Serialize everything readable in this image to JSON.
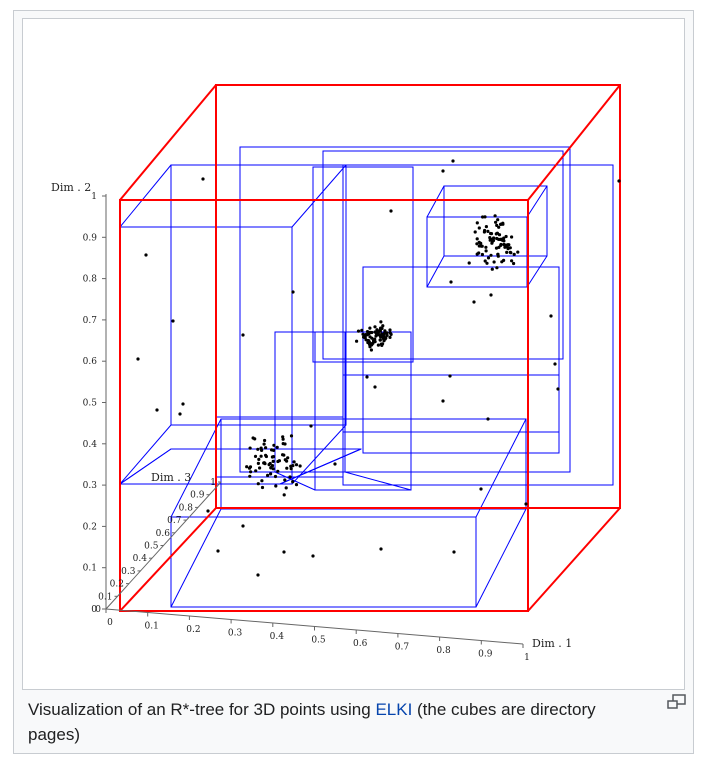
{
  "figure": {
    "axes": {
      "dim1_label": "Dim . 1",
      "dim2_label": "Dim . 2",
      "dim3_label": "Dim . 3",
      "dim1_ticks": [
        "0",
        "0.1",
        "0.2",
        "0.3",
        "0.4",
        "0.5",
        "0.6",
        "0.7",
        "0.8",
        "0.9",
        "1"
      ],
      "dim2_ticks": [
        "0",
        "0.1",
        "0.2",
        "0.3",
        "0.4",
        "0.5",
        "0.6",
        "0.7",
        "0.8",
        "0.9",
        "1"
      ],
      "dim3_ticks": [
        "0",
        "0.1",
        "0.2",
        "0.3",
        "0.4",
        "0.5",
        "0.6",
        "0.7",
        "0.8",
        "0.9",
        "1"
      ]
    },
    "colors": {
      "root_cube": "#ff0000",
      "directory_cubes": "#0000ff",
      "points": "#000000"
    }
  },
  "caption": {
    "before_link": "Visualization of an R*-tree for 3D points using ",
    "link": "ELKI",
    "after_link": " (the cubes are directory pages)"
  },
  "controls": {
    "enlarge_icon": "magnify-icon"
  }
}
